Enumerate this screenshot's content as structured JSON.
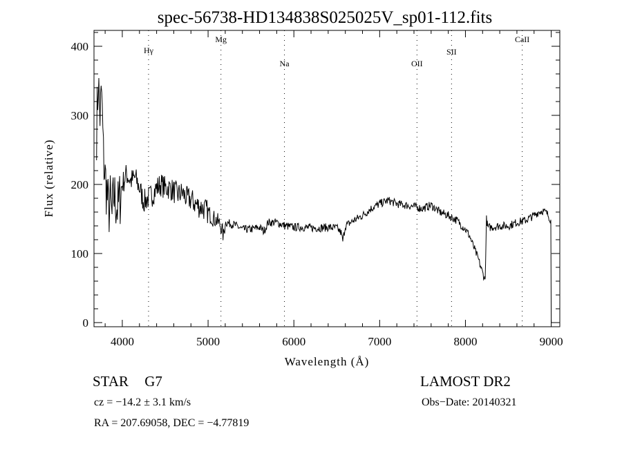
{
  "chart_data": {
    "type": "line",
    "title": "spec-56738-HD134838S025025V_sp01-112.fits",
    "xlabel": "Wavelength (Å)",
    "ylabel": "Flux (relative)",
    "xlim": [
      3670,
      9100
    ],
    "ylim": [
      -6,
      423
    ],
    "xticks": [
      4000,
      5000,
      6000,
      7000,
      8000,
      9000
    ],
    "xtick_labels": [
      "4000",
      "5000",
      "6000",
      "7000",
      "8000",
      "9000"
    ],
    "yticks": [
      0,
      100,
      200,
      300,
      400
    ],
    "ytick_labels": [
      "0",
      "100",
      "200",
      "300",
      "400"
    ],
    "grid": false,
    "line_markers": [
      {
        "label": "Hγ",
        "x": 4306
      },
      {
        "label": "Mg",
        "x": 5150
      },
      {
        "label": "Na",
        "x": 5890
      },
      {
        "label": "OII",
        "x": 7435
      },
      {
        "label": "SII",
        "x": 7838
      },
      {
        "label": "CaII",
        "x": 8662
      }
    ],
    "series": [
      {
        "name": "flux",
        "x": [
          3700,
          3720,
          3740,
          3760,
          3780,
          3800,
          3820,
          3840,
          3860,
          3880,
          3900,
          3950,
          4000,
          4050,
          4100,
          4150,
          4200,
          4250,
          4300,
          4350,
          4400,
          4450,
          4500,
          4550,
          4600,
          4650,
          4700,
          4750,
          4800,
          4850,
          4900,
          4950,
          5000,
          5050,
          5100,
          5150,
          5180,
          5200,
          5300,
          5400,
          5500,
          5600,
          5650,
          5700,
          5800,
          5900,
          6000,
          6100,
          6200,
          6300,
          6400,
          6500,
          6550,
          6570,
          6600,
          6700,
          6800,
          6900,
          7000,
          7100,
          7200,
          7300,
          7400,
          7500,
          7600,
          7700,
          7800,
          7900,
          8000,
          8050,
          8100,
          8150,
          8200,
          8230,
          8245,
          8260,
          8300,
          8400,
          8500,
          8600,
          8700,
          8800,
          8850,
          8900,
          8950,
          8980,
          8995,
          9000
        ],
        "y": [
          280,
          350,
          300,
          330,
          240,
          210,
          190,
          160,
          175,
          150,
          185,
          165,
          200,
          215,
          205,
          210,
          195,
          175,
          180,
          185,
          195,
          200,
          195,
          195,
          190,
          185,
          188,
          180,
          178,
          172,
          168,
          165,
          160,
          152,
          148,
          140,
          125,
          145,
          142,
          135,
          135,
          138,
          132,
          145,
          145,
          140,
          138,
          138,
          137,
          137,
          138,
          137,
          130,
          118,
          140,
          148,
          155,
          165,
          172,
          177,
          172,
          170,
          168,
          165,
          170,
          160,
          155,
          148,
          135,
          125,
          108,
          92,
          72,
          62,
          150,
          138,
          138,
          140,
          140,
          145,
          148,
          155,
          160,
          162,
          158,
          152,
          148,
          0
        ]
      }
    ]
  },
  "info": {
    "object_class": "STAR",
    "subclass": "G7",
    "survey": "LAMOST DR2",
    "cz": "cz = −14.2 ± 3.1 km/s",
    "obs_date": "Obs−Date: 20140321",
    "radec": "RA = 207.69058, DEC =  −4.77819"
  }
}
